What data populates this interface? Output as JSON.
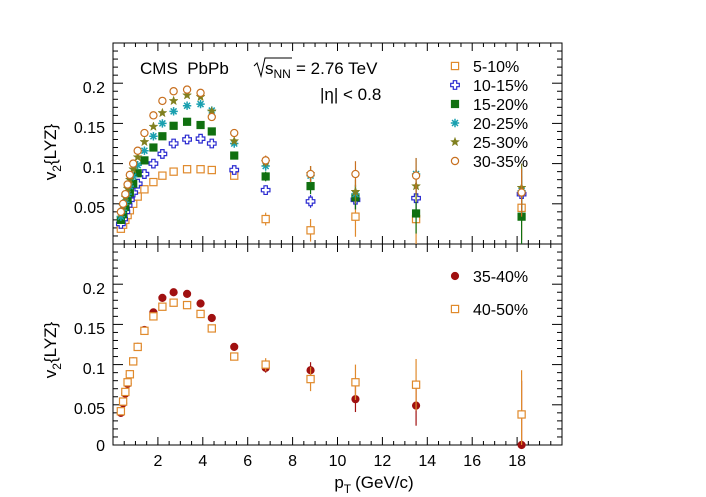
{
  "chart_data": [
    {
      "type": "scatter",
      "panel": "top",
      "title": "CMS  PbPb",
      "energy_label": "= 2.76 TeV",
      "energy_symbol_base": "s",
      "energy_symbol_sub": "NN",
      "eta_label": "|η| < 0.8",
      "ylabel": "{LYZ}",
      "ylabel_base": "v",
      "ylabel_sub": "2",
      "xlim": [
        0,
        20
      ],
      "ylim": [
        0,
        0.25
      ],
      "yticks": [
        "0.05",
        "0.1",
        "0.15",
        "0.2"
      ],
      "legend_position": "top-right",
      "series": [
        {
          "name": "5-10%",
          "marker": "open-square",
          "color": "#e08a2c",
          "x": [
            0.35,
            0.45,
            0.55,
            0.65,
            0.75,
            0.9,
            1.1,
            1.4,
            1.8,
            2.2,
            2.7,
            3.3,
            3.9,
            4.4,
            5.4,
            6.8,
            8.8,
            10.8,
            13.5,
            18.2
          ],
          "y": [
            0.019,
            0.024,
            0.03,
            0.036,
            0.042,
            0.05,
            0.059,
            0.068,
            0.077,
            0.085,
            0.09,
            0.093,
            0.093,
            0.092,
            0.085,
            0.031,
            0.017,
            0.034,
            0.031,
            0.045
          ],
          "err": [
            0.003,
            0.003,
            0.003,
            0.003,
            0.003,
            0.003,
            0.003,
            0.003,
            0.003,
            0.003,
            0.003,
            0.003,
            0.003,
            0.003,
            0.004,
            0.008,
            0.014,
            0.025,
            0.035,
            0.04
          ]
        },
        {
          "name": "10-15%",
          "marker": "open-cross",
          "color": "#2b2bd0",
          "x": [
            0.35,
            0.45,
            0.55,
            0.65,
            0.75,
            0.9,
            1.1,
            1.4,
            1.8,
            2.2,
            2.7,
            3.3,
            3.9,
            4.4,
            5.4,
            6.8,
            8.8,
            10.8,
            13.5,
            18.2
          ],
          "y": [
            0.025,
            0.031,
            0.04,
            0.048,
            0.055,
            0.064,
            0.075,
            0.087,
            0.1,
            0.112,
            0.125,
            0.13,
            0.131,
            0.125,
            0.092,
            0.067,
            0.053,
            0.055,
            0.057,
            0.062
          ],
          "err": [
            0.003,
            0.003,
            0.003,
            0.003,
            0.003,
            0.003,
            0.003,
            0.003,
            0.003,
            0.003,
            0.003,
            0.003,
            0.003,
            0.003,
            0.004,
            0.006,
            0.008,
            0.012,
            0.02,
            0.03
          ]
        },
        {
          "name": "15-20%",
          "marker": "filled-square",
          "color": "#107010",
          "x": [
            0.35,
            0.45,
            0.55,
            0.65,
            0.75,
            0.9,
            1.1,
            1.4,
            1.8,
            2.2,
            2.7,
            3.3,
            3.9,
            4.4,
            5.4,
            6.8,
            8.8,
            10.8,
            13.5,
            18.2
          ],
          "y": [
            0.03,
            0.037,
            0.046,
            0.055,
            0.064,
            0.075,
            0.088,
            0.104,
            0.12,
            0.134,
            0.147,
            0.152,
            0.148,
            0.14,
            0.11,
            0.084,
            0.072,
            0.058,
            0.038,
            0.034
          ],
          "err": [
            0.003,
            0.003,
            0.003,
            0.003,
            0.003,
            0.003,
            0.003,
            0.003,
            0.003,
            0.003,
            0.003,
            0.003,
            0.003,
            0.003,
            0.004,
            0.006,
            0.01,
            0.015,
            0.025,
            0.045
          ]
        },
        {
          "name": "20-25%",
          "marker": "asterisk",
          "color": "#1aa0b0",
          "x": [
            0.35,
            0.45,
            0.55,
            0.65,
            0.75,
            0.9,
            1.1,
            1.4,
            1.8,
            2.2,
            2.7,
            3.3,
            3.9,
            4.4,
            5.4,
            6.8,
            8.8,
            10.8,
            13.5,
            18.2
          ],
          "y": [
            0.034,
            0.042,
            0.052,
            0.062,
            0.072,
            0.084,
            0.098,
            0.116,
            0.134,
            0.15,
            0.165,
            0.172,
            0.174,
            0.166,
            0.125,
            0.097,
            0.085,
            0.062,
            0.087,
            0.066
          ],
          "err": [
            0.003,
            0.003,
            0.003,
            0.003,
            0.003,
            0.003,
            0.003,
            0.003,
            0.003,
            0.003,
            0.003,
            0.003,
            0.003,
            0.003,
            0.004,
            0.006,
            0.008,
            0.012,
            0.02,
            0.03
          ]
        },
        {
          "name": "25-30%",
          "marker": "star",
          "color": "#808020",
          "x": [
            0.35,
            0.45,
            0.55,
            0.65,
            0.75,
            0.9,
            1.1,
            1.4,
            1.8,
            2.2,
            2.7,
            3.3,
            3.9,
            4.4,
            5.4,
            6.8,
            8.8,
            10.8,
            13.5,
            18.2
          ],
          "y": [
            0.038,
            0.047,
            0.058,
            0.069,
            0.08,
            0.093,
            0.108,
            0.127,
            0.146,
            0.163,
            0.178,
            0.185,
            0.183,
            0.165,
            0.128,
            0.102,
            0.087,
            0.065,
            0.072,
            0.07
          ],
          "err": [
            0.003,
            0.003,
            0.003,
            0.003,
            0.003,
            0.003,
            0.003,
            0.003,
            0.003,
            0.003,
            0.003,
            0.003,
            0.003,
            0.003,
            0.004,
            0.006,
            0.01,
            0.015,
            0.02,
            0.03
          ]
        },
        {
          "name": "30-35%",
          "marker": "open-circle",
          "color": "#c87020",
          "x": [
            0.35,
            0.45,
            0.55,
            0.65,
            0.75,
            0.9,
            1.1,
            1.4,
            1.8,
            2.2,
            2.7,
            3.3,
            3.9,
            4.4,
            5.4,
            6.8,
            8.8,
            10.8,
            13.5,
            18.2
          ],
          "y": [
            0.04,
            0.05,
            0.062,
            0.074,
            0.086,
            0.1,
            0.116,
            0.138,
            0.16,
            0.178,
            0.19,
            0.192,
            0.188,
            0.158,
            0.138,
            0.104,
            0.087,
            0.087,
            0.085,
            0.064
          ],
          "err": [
            0.003,
            0.003,
            0.003,
            0.003,
            0.003,
            0.003,
            0.003,
            0.003,
            0.003,
            0.003,
            0.003,
            0.003,
            0.003,
            0.003,
            0.004,
            0.006,
            0.01,
            0.016,
            0.022,
            0.03
          ]
        }
      ]
    },
    {
      "type": "scatter",
      "panel": "bottom",
      "title": "",
      "ylabel": "{LYZ}",
      "ylabel_base": "v",
      "ylabel_sub": "2",
      "xlabel": "(GeV/c)",
      "xlabel_base": "p",
      "xlabel_sub": "T",
      "xlim": [
        0,
        20
      ],
      "ylim": [
        0,
        0.25
      ],
      "xticks": [
        "2",
        "4",
        "6",
        "8",
        "10",
        "12",
        "14",
        "16",
        "18"
      ],
      "yticks": [
        "0",
        "0.05",
        "0.1",
        "0.15",
        "0.2"
      ],
      "legend_position": "top-right",
      "series": [
        {
          "name": "35-40%",
          "marker": "filled-circle",
          "color": "#a01010",
          "x": [
            0.35,
            0.45,
            0.55,
            0.65,
            0.75,
            0.9,
            1.1,
            1.4,
            1.8,
            2.2,
            2.7,
            3.3,
            3.9,
            4.4,
            5.4,
            6.8,
            8.8,
            10.8,
            13.5,
            18.2
          ],
          "y": [
            0.04,
            0.052,
            0.064,
            0.076,
            0.088,
            0.104,
            0.122,
            0.143,
            0.165,
            0.183,
            0.19,
            0.188,
            0.176,
            0.158,
            0.122,
            0.096,
            0.093,
            0.057,
            0.049,
            0.0
          ],
          "err": [
            0.003,
            0.003,
            0.003,
            0.003,
            0.003,
            0.003,
            0.003,
            0.003,
            0.003,
            0.003,
            0.003,
            0.003,
            0.003,
            0.003,
            0.004,
            0.006,
            0.01,
            0.016,
            0.025,
            0.08
          ]
        },
        {
          "name": "40-50%",
          "marker": "open-square",
          "color": "#e08a2c",
          "x": [
            0.35,
            0.45,
            0.55,
            0.65,
            0.75,
            0.9,
            1.1,
            1.4,
            1.8,
            2.2,
            2.7,
            3.3,
            3.9,
            4.4,
            5.4,
            6.8,
            8.8,
            10.8,
            13.5,
            18.2
          ],
          "y": [
            0.042,
            0.054,
            0.066,
            0.078,
            0.088,
            0.104,
            0.122,
            0.142,
            0.16,
            0.172,
            0.177,
            0.174,
            0.163,
            0.145,
            0.11,
            0.1,
            0.082,
            0.078,
            0.075,
            0.038
          ],
          "err": [
            0.003,
            0.003,
            0.003,
            0.003,
            0.003,
            0.003,
            0.003,
            0.003,
            0.003,
            0.003,
            0.003,
            0.003,
            0.003,
            0.003,
            0.004,
            0.008,
            0.015,
            0.022,
            0.032,
            0.055
          ]
        }
      ]
    }
  ]
}
